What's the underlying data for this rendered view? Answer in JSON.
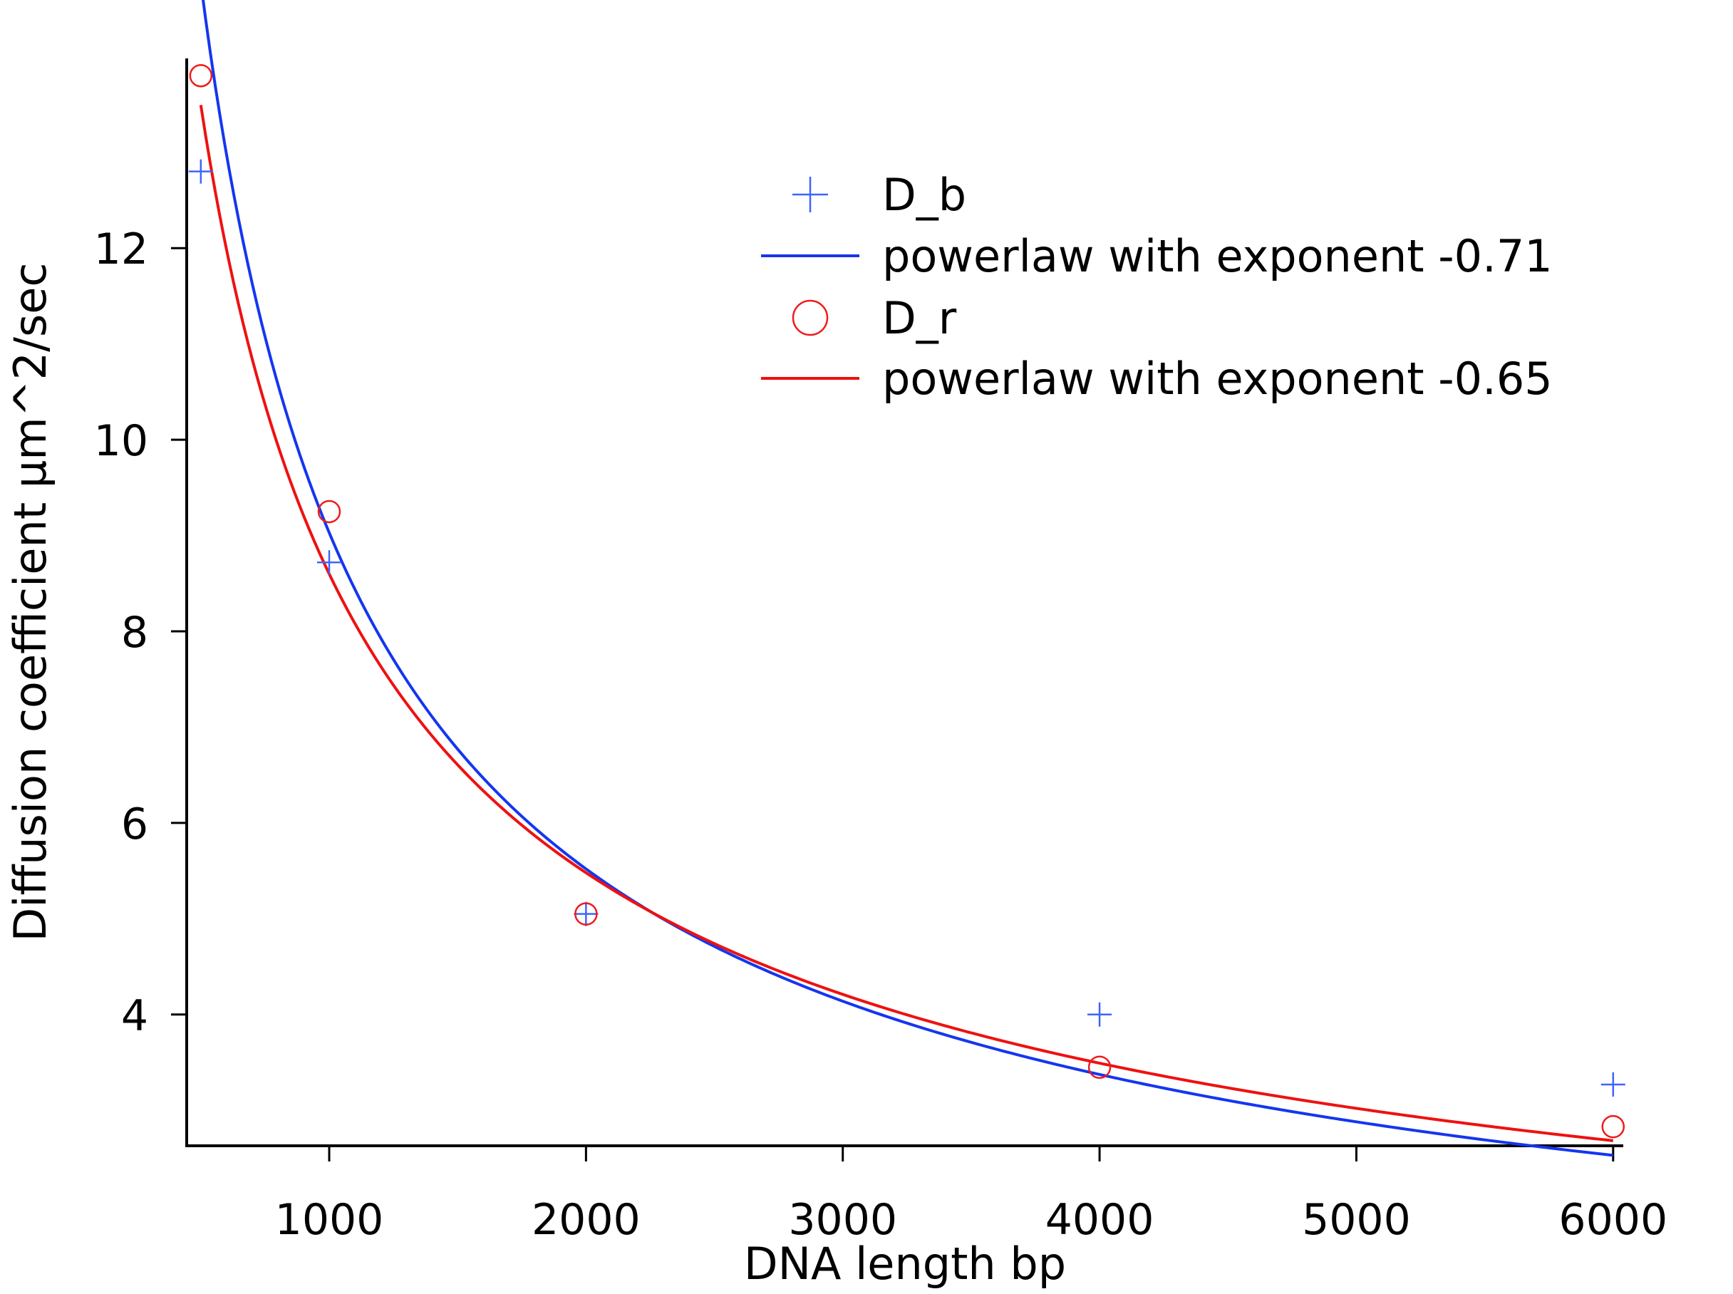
{
  "chart_data": {
    "type": "scatter",
    "title": "",
    "xlabel": "DNA length bp",
    "ylabel": "Diffusion coefficient µm^2/sec",
    "xlim": [
      445,
      6045
    ],
    "ylim": [
      2.63,
      13.98
    ],
    "xticks": [
      1000,
      2000,
      3000,
      4000,
      5000,
      6000
    ],
    "yticks": [
      4,
      6,
      8,
      10,
      12
    ],
    "grid": false,
    "legend_position": "top-right",
    "series": [
      {
        "name": "D_b",
        "kind": "points",
        "marker": "plus",
        "color": "#3f63ff",
        "x": [
          500,
          1000,
          2000,
          4000,
          6000
        ],
        "y": [
          12.8,
          8.72,
          5.05,
          4.0,
          3.27
        ]
      },
      {
        "name": "powerlaw with exponent -0.71",
        "kind": "fit",
        "color": "#1436f0",
        "exponent": -0.71,
        "x_range": [
          500,
          6000
        ],
        "y_at_2000": 5.52
      },
      {
        "name": "D_r",
        "kind": "points",
        "marker": "circle",
        "color": "#ee1c1c",
        "x": [
          500,
          1000,
          2000,
          4000,
          6000
        ],
        "y": [
          13.8,
          9.25,
          5.05,
          3.45,
          2.83
        ]
      },
      {
        "name": "powerlaw with exponent -0.65",
        "kind": "fit",
        "color": "#ee1111",
        "exponent": -0.65,
        "x_range": [
          500,
          6000
        ],
        "y_at_2000": 5.48
      }
    ]
  }
}
